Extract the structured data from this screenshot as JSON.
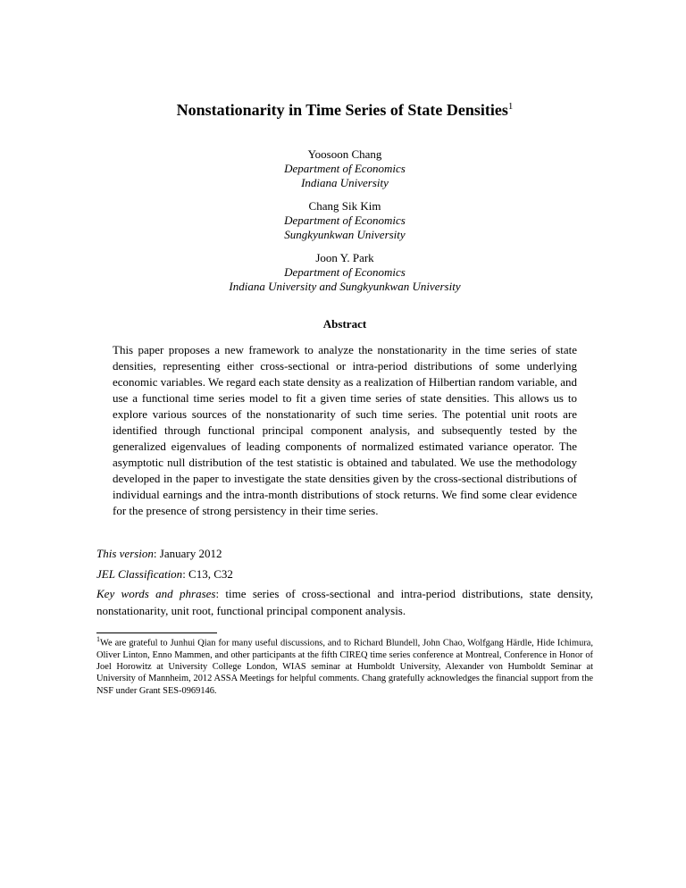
{
  "title": "Nonstationarity in Time Series of State Densities",
  "title_footnote_mark": "1",
  "authors": [
    {
      "name": "Yoosoon Chang",
      "affiliation_lines": [
        "Department of Economics",
        "Indiana University"
      ]
    },
    {
      "name": "Chang Sik Kim",
      "affiliation_lines": [
        "Department of Economics",
        "Sungkyunkwan University"
      ]
    },
    {
      "name": "Joon Y. Park",
      "affiliation_lines": [
        "Department of Economics",
        "Indiana University and Sungkyunkwan University"
      ]
    }
  ],
  "abstract_heading": "Abstract",
  "abstract_body": "This paper proposes a new framework to analyze the nonstationarity in the time series of state densities, representing either cross-sectional or intra-period distributions of some underlying economic variables. We regard each state density as a realization of Hilbertian random variable, and use a functional time series model to fit a given time series of state densities. This allows us to explore various sources of the nonstationarity of such time series. The potential unit roots are identified through functional principal component analysis, and subsequently tested by the generalized eigenvalues of leading components of normalized estimated variance operator. The asymptotic null distribution of the test statistic is obtained and tabulated. We use the methodology developed in the paper to investigate the state densities given by the cross-sectional distributions of individual earnings and the intra-month distributions of stock returns. We find some clear evidence for the presence of strong persistency in their time series.",
  "version_label": "This version",
  "version_value": ": January 2012",
  "jel_label": "JEL Classification",
  "jel_value": ": C13, C32",
  "keywords_label": "Key words and phrases",
  "keywords_value": ": time series of cross-sectional and intra-period distributions, state density, nonstationarity, unit root, functional principal component analysis.",
  "footnote_mark": "1",
  "footnote_text": "We are grateful to Junhui Qian for many useful discussions, and to Richard Blundell, John Chao, Wolfgang Härdle, Hide Ichimura, Oliver Linton, Enno Mammen, and other participants at the fifth CIREQ time series conference at Montreal, Conference in Honor of Joel Horowitz at University College London, WIAS seminar at Humboldt University, Alexander von Humboldt Seminar at University of Mannheim, 2012 ASSA Meetings for helpful comments. Chang gratefully acknowledges the financial support from the NSF under Grant SES-0969146."
}
